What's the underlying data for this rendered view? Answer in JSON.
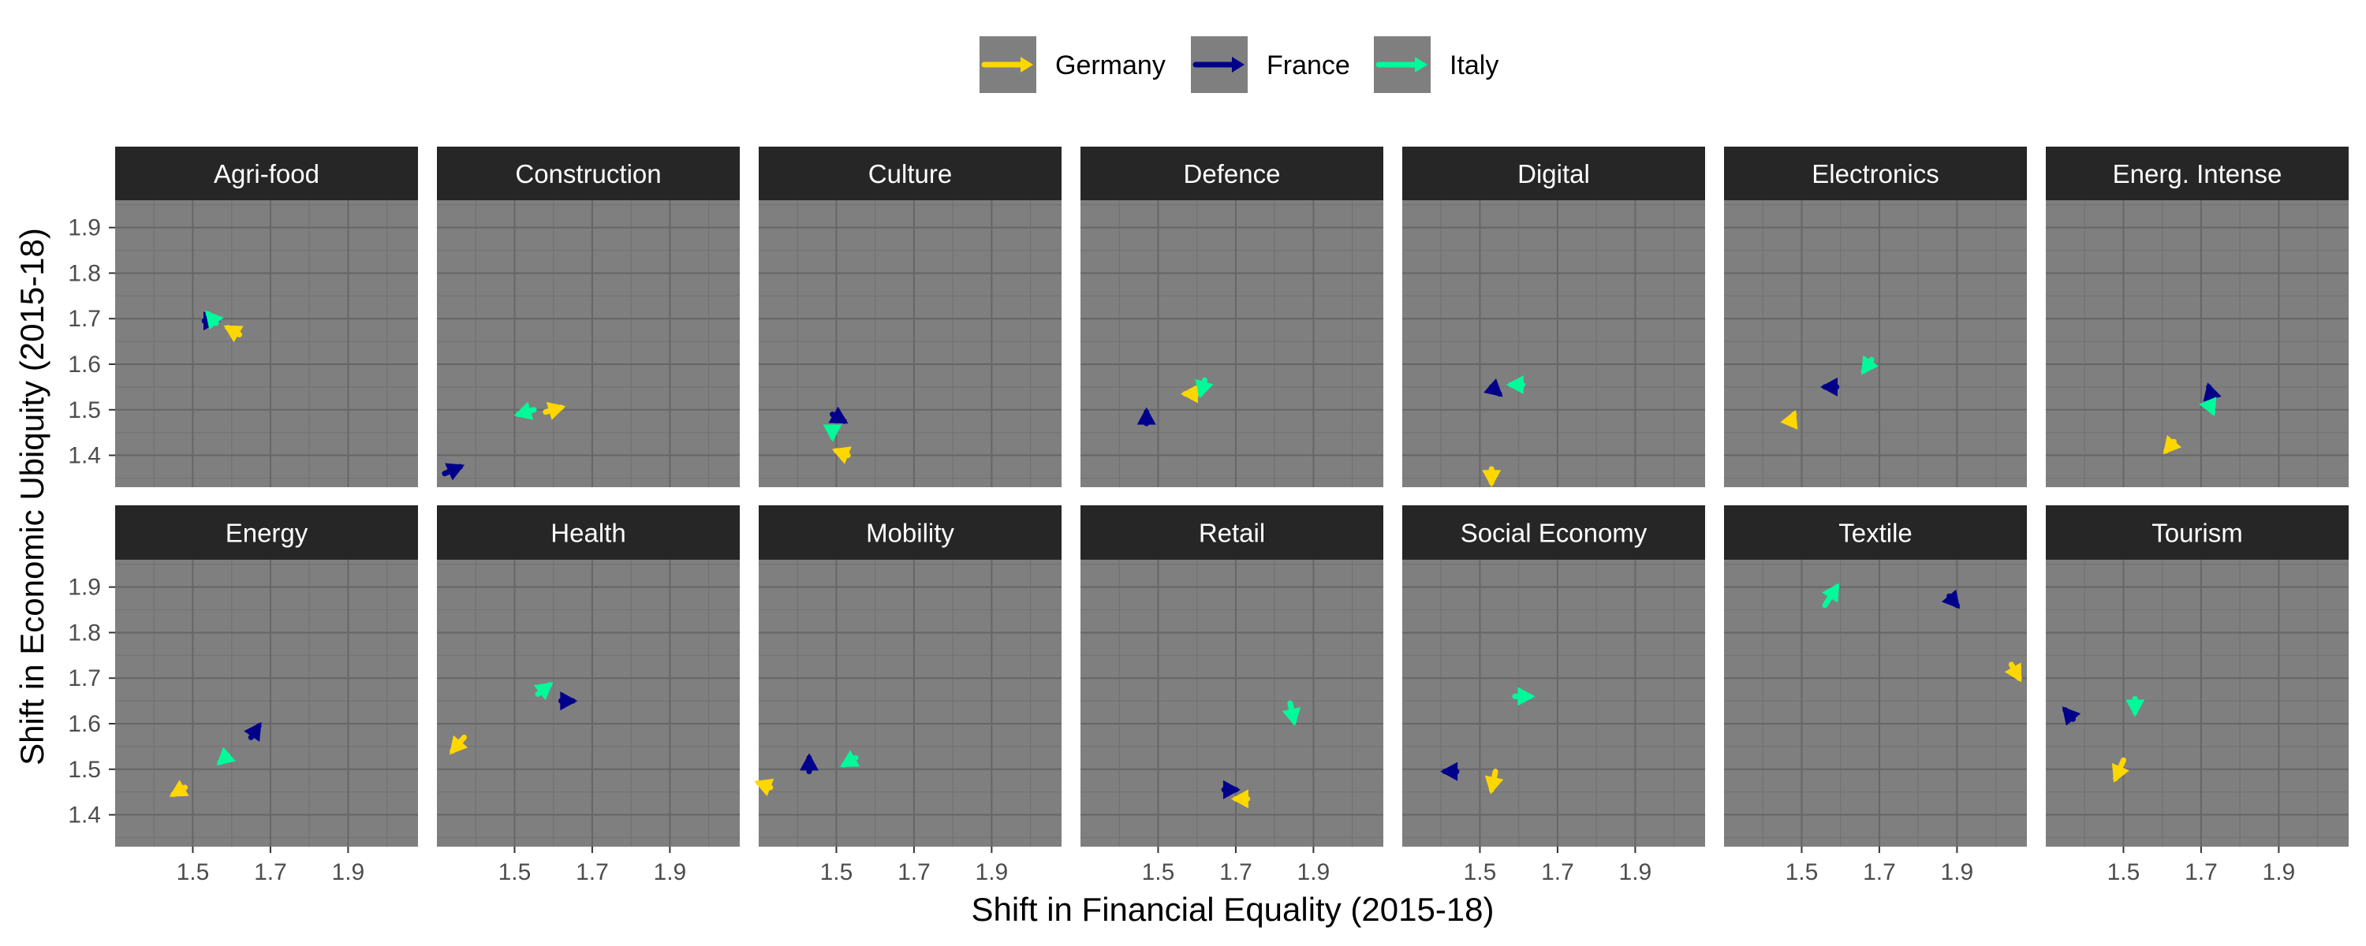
{
  "chart_data": {
    "type": "scatter",
    "title": "",
    "xlabel": "Shift in Financial Equality (2015-18)",
    "ylabel": "Shift in Economic Ubiquity (2015-18)",
    "xlim": [
      1.3,
      2.08
    ],
    "ylim": [
      1.33,
      1.96
    ],
    "x_ticks": [
      "1.5",
      "1.7",
      "1.9"
    ],
    "y_ticks": [
      "1.4",
      "1.5",
      "1.6",
      "1.7",
      "1.8",
      "1.9"
    ],
    "grid": true,
    "legend_position": "top",
    "series": [
      {
        "name": "Germany",
        "color": "#FFD700"
      },
      {
        "name": "France",
        "color": "#00008B"
      },
      {
        "name": "Italy",
        "color": "#00FA9A"
      }
    ],
    "panels": [
      {
        "name": "Agri-food",
        "arrows": [
          {
            "series": "Germany",
            "x": 1.62,
            "y": 1.665,
            "dx": -0.03,
            "dy": 0.015
          },
          {
            "series": "France",
            "x": 1.53,
            "y": 1.695,
            "dx": 0.03,
            "dy": 0.0
          },
          {
            "series": "Italy",
            "x": 1.56,
            "y": 1.69,
            "dx": -0.02,
            "dy": 0.02
          }
        ]
      },
      {
        "name": "Construction",
        "arrows": [
          {
            "series": "Germany",
            "x": 1.58,
            "y": 1.495,
            "dx": 0.04,
            "dy": 0.01
          },
          {
            "series": "France",
            "x": 1.32,
            "y": 1.36,
            "dx": 0.04,
            "dy": 0.015
          },
          {
            "series": "Italy",
            "x": 1.55,
            "y": 1.5,
            "dx": -0.04,
            "dy": -0.01
          }
        ]
      },
      {
        "name": "Culture",
        "arrows": [
          {
            "series": "Germany",
            "x": 1.53,
            "y": 1.4,
            "dx": -0.03,
            "dy": 0.01
          },
          {
            "series": "France",
            "x": 1.49,
            "y": 1.49,
            "dx": 0.03,
            "dy": -0.015
          },
          {
            "series": "Italy",
            "x": 1.49,
            "y": 1.46,
            "dx": 0.0,
            "dy": -0.02
          }
        ]
      },
      {
        "name": "Defence",
        "arrows": [
          {
            "series": "Germany",
            "x": 1.6,
            "y": 1.535,
            "dx": -0.03,
            "dy": 0.0
          },
          {
            "series": "France",
            "x": 1.47,
            "y": 1.47,
            "dx": 0.0,
            "dy": 0.025
          },
          {
            "series": "Italy",
            "x": 1.62,
            "y": 1.565,
            "dx": -0.01,
            "dy": -0.03
          }
        ]
      },
      {
        "name": "Digital",
        "arrows": [
          {
            "series": "Germany",
            "x": 1.53,
            "y": 1.37,
            "dx": 0.0,
            "dy": -0.03
          },
          {
            "series": "France",
            "x": 1.53,
            "y": 1.55,
            "dx": 0.02,
            "dy": -0.015
          },
          {
            "series": "Italy",
            "x": 1.61,
            "y": 1.555,
            "dx": -0.03,
            "dy": 0.0
          }
        ]
      },
      {
        "name": "Electronics",
        "arrows": [
          {
            "series": "Germany",
            "x": 1.47,
            "y": 1.47,
            "dx": 0.01,
            "dy": 0.02
          },
          {
            "series": "France",
            "x": 1.59,
            "y": 1.55,
            "dx": -0.03,
            "dy": 0.0
          },
          {
            "series": "Italy",
            "x": 1.68,
            "y": 1.61,
            "dx": -0.02,
            "dy": -0.025
          }
        ]
      },
      {
        "name": "Energ. Intense",
        "arrows": [
          {
            "series": "Germany",
            "x": 1.63,
            "y": 1.43,
            "dx": -0.02,
            "dy": -0.02
          },
          {
            "series": "France",
            "x": 1.73,
            "y": 1.52,
            "dx": -0.01,
            "dy": 0.03
          },
          {
            "series": "Italy",
            "x": 1.72,
            "y": 1.515,
            "dx": 0.01,
            "dy": -0.02
          }
        ]
      },
      {
        "name": "Energy",
        "arrows": [
          {
            "series": "Germany",
            "x": 1.48,
            "y": 1.46,
            "dx": -0.03,
            "dy": -0.015
          },
          {
            "series": "France",
            "x": 1.65,
            "y": 1.57,
            "dx": 0.02,
            "dy": 0.025
          },
          {
            "series": "Italy",
            "x": 1.59,
            "y": 1.53,
            "dx": -0.02,
            "dy": -0.015
          }
        ]
      },
      {
        "name": "Health",
        "arrows": [
          {
            "series": "Germany",
            "x": 1.37,
            "y": 1.57,
            "dx": -0.03,
            "dy": -0.03
          },
          {
            "series": "France",
            "x": 1.62,
            "y": 1.65,
            "dx": 0.03,
            "dy": 0.0
          },
          {
            "series": "Italy",
            "x": 1.56,
            "y": 1.665,
            "dx": 0.03,
            "dy": 0.02
          }
        ]
      },
      {
        "name": "Mobility",
        "arrows": [
          {
            "series": "Germany",
            "x": 1.33,
            "y": 1.46,
            "dx": -0.03,
            "dy": 0.01
          },
          {
            "series": "France",
            "x": 1.43,
            "y": 1.495,
            "dx": 0.0,
            "dy": 0.03
          },
          {
            "series": "Italy",
            "x": 1.55,
            "y": 1.525,
            "dx": -0.03,
            "dy": -0.015
          }
        ]
      },
      {
        "name": "Retail",
        "arrows": [
          {
            "series": "Germany",
            "x": 1.73,
            "y": 1.435,
            "dx": -0.03,
            "dy": 0.0
          },
          {
            "series": "France",
            "x": 1.67,
            "y": 1.455,
            "dx": 0.03,
            "dy": 0.0
          },
          {
            "series": "Italy",
            "x": 1.84,
            "y": 1.645,
            "dx": 0.01,
            "dy": -0.04
          }
        ]
      },
      {
        "name": "Social Economy",
        "arrows": [
          {
            "series": "Germany",
            "x": 1.54,
            "y": 1.495,
            "dx": -0.01,
            "dy": -0.04
          },
          {
            "series": "France",
            "x": 1.44,
            "y": 1.495,
            "dx": -0.03,
            "dy": 0.0
          },
          {
            "series": "Italy",
            "x": 1.59,
            "y": 1.66,
            "dx": 0.04,
            "dy": 0.0
          }
        ]
      },
      {
        "name": "Textile",
        "arrows": [
          {
            "series": "Germany",
            "x": 2.04,
            "y": 1.73,
            "dx": 0.02,
            "dy": -0.03
          },
          {
            "series": "France",
            "x": 1.88,
            "y": 1.88,
            "dx": 0.02,
            "dy": -0.02
          },
          {
            "series": "Italy",
            "x": 1.56,
            "y": 1.86,
            "dx": 0.03,
            "dy": 0.04
          }
        ]
      },
      {
        "name": "Tourism",
        "arrows": [
          {
            "series": "Germany",
            "x": 1.5,
            "y": 1.52,
            "dx": -0.02,
            "dy": -0.04
          },
          {
            "series": "France",
            "x": 1.37,
            "y": 1.61,
            "dx": -0.02,
            "dy": 0.02
          },
          {
            "series": "Italy",
            "x": 1.53,
            "y": 1.655,
            "dx": 0.0,
            "dy": -0.03
          }
        ]
      }
    ]
  }
}
